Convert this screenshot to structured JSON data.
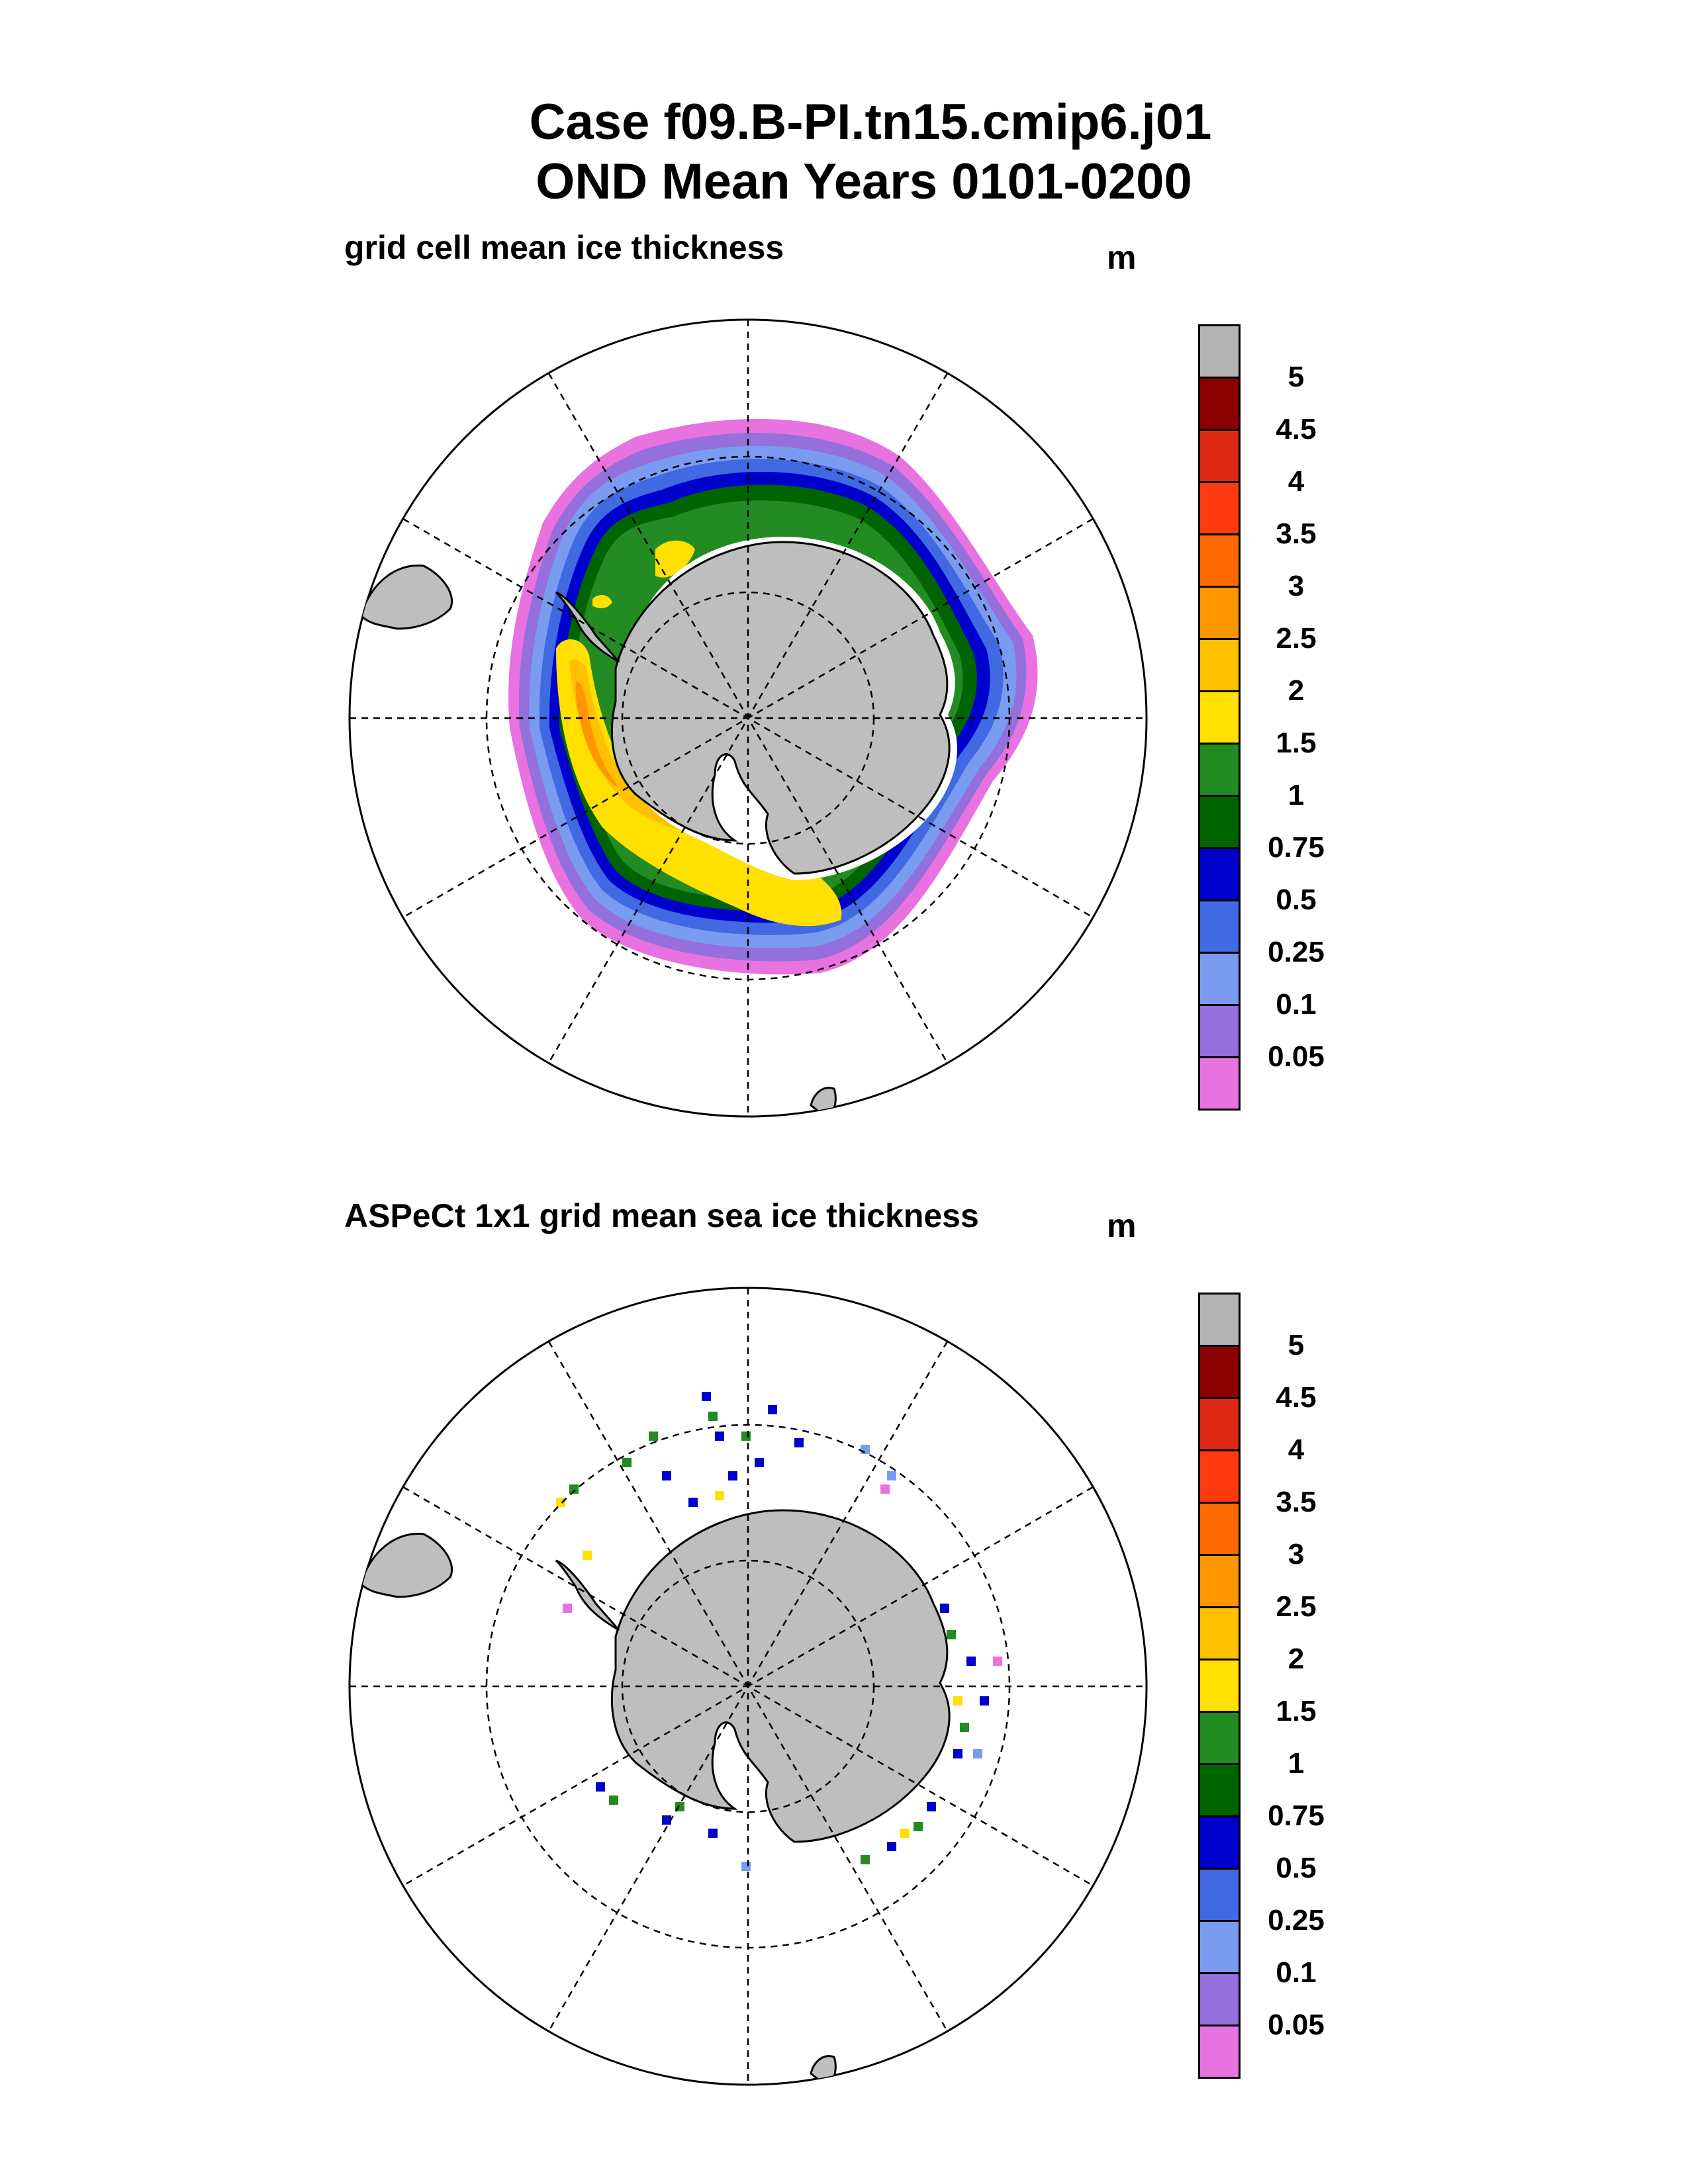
{
  "title_line1": "Case f09.B-PI.tn15.cmip6.j01",
  "title_line2": "OND Mean   Years 0101-0200",
  "panels": [
    {
      "subtitle": "grid cell mean ice thickness",
      "unit": "m"
    },
    {
      "subtitle": "ASPeCt 1x1 grid mean sea ice thickness",
      "unit": "m"
    }
  ],
  "colorbar": {
    "labels": [
      "5",
      "4.5",
      "4",
      "3.5",
      "3",
      "2.5",
      "2",
      "1.5",
      "1",
      "0.75",
      "0.5",
      "0.25",
      "0.1",
      "0.05"
    ],
    "colors": [
      "#b4b4b4",
      "#8b0000",
      "#dc2a14",
      "#ff3a10",
      "#ff6a00",
      "#ff9600",
      "#ffc000",
      "#ffe000",
      "#228b22",
      "#006400",
      "#0000cd",
      "#4169e1",
      "#7a9cf0",
      "#9370db",
      "#e872e0"
    ]
  },
  "colors": {
    "land": "#bebebe",
    "coast": "#000000"
  }
}
